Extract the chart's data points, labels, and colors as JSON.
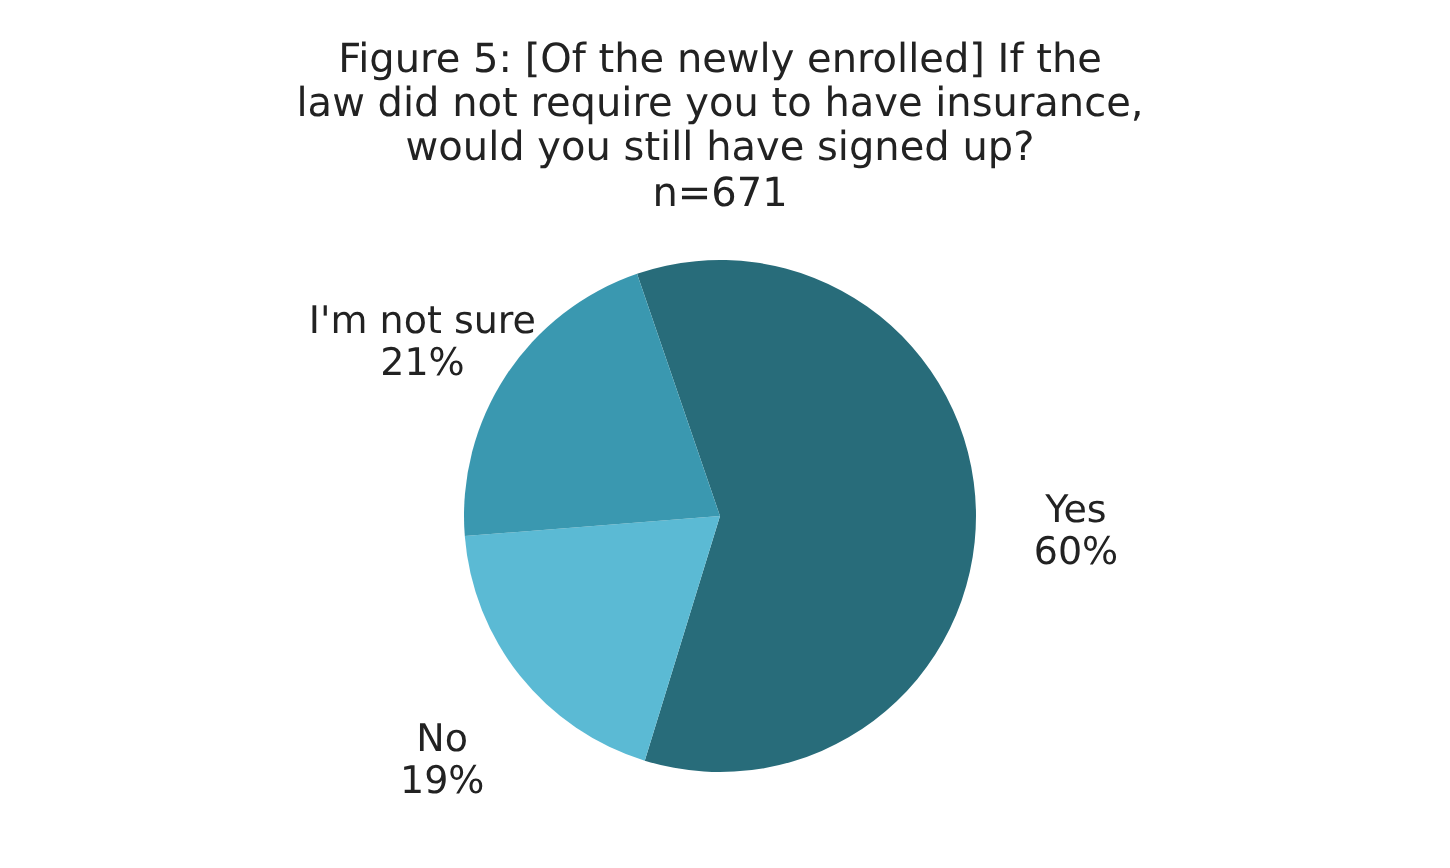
{
  "chart_data": {
    "type": "pie",
    "title": "Figure 5:  [Of the newly enrolled] If the law did not require you to have insurance, would you still have signed up?",
    "subtitle": "n=671",
    "categories": [
      "Yes",
      "No",
      "I'm not sure"
    ],
    "values": [
      60,
      19,
      21
    ],
    "value_labels": [
      "60%",
      "19%",
      "21%"
    ],
    "colors": [
      "#286c7a",
      "#5bbad4",
      "#3a98b0"
    ],
    "legend": false
  }
}
